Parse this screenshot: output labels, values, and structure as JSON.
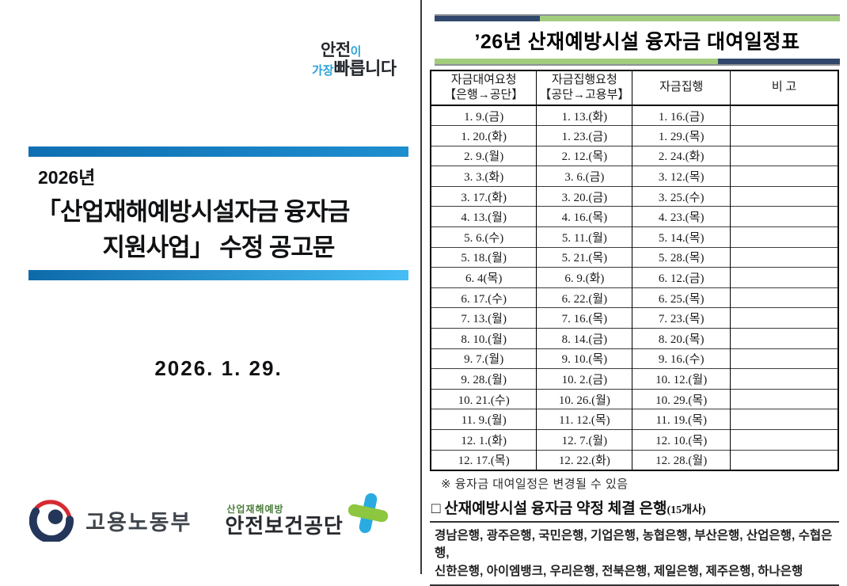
{
  "left_page": {
    "slogan": {
      "word_safety": "안전",
      "particle": "이",
      "word_most": "가장",
      "word_fastest": "빠릅니다"
    },
    "notice": {
      "year_line": "2026년",
      "title_line1": "「산업재해예방시설자금 융자금",
      "title_line2": "지원사업」 수정 공고문"
    },
    "date": "2026. 1. 29.",
    "moel": {
      "label": "고용노동부"
    },
    "kosha": {
      "sub_label": "산업재해예방",
      "label": "안전보건공단"
    }
  },
  "right_page": {
    "title": "’26년 산재예방시설 융자금 대여일정표",
    "table": {
      "headers": [
        {
          "line1": "자금대여요청",
          "line2": "【은행→공단】"
        },
        {
          "line1": "자금집행요청",
          "line2": "【공단→고용부】"
        },
        {
          "line1": "자금집행",
          "line2": ""
        },
        {
          "line1": "비 고",
          "line2": ""
        }
      ],
      "rows": [
        [
          "1. 9.(금)",
          "1. 13.(화)",
          "1. 16.(금)",
          ""
        ],
        [
          "1. 20.(화)",
          "1. 23.(금)",
          "1. 29.(목)",
          ""
        ],
        [
          "2. 9.(월)",
          "2. 12.(목)",
          "2. 24.(화)",
          ""
        ],
        [
          "3. 3.(화)",
          "3. 6.(금)",
          "3. 12.(목)",
          ""
        ],
        [
          "3. 17.(화)",
          "3. 20.(금)",
          "3. 25.(수)",
          ""
        ],
        [
          "4. 13.(월)",
          "4. 16.(목)",
          "4. 23.(목)",
          ""
        ],
        [
          "5. 6.(수)",
          "5. 11.(월)",
          "5. 14.(목)",
          ""
        ],
        [
          "5. 18.(월)",
          "5. 21.(목)",
          "5. 28.(목)",
          ""
        ],
        [
          "6. 4(목)",
          "6. 9.(화)",
          "6. 12.(금)",
          ""
        ],
        [
          "6. 17.(수)",
          "6. 22.(월)",
          "6. 25.(목)",
          ""
        ],
        [
          "7. 13.(월)",
          "7. 16.(목)",
          "7. 23.(목)",
          ""
        ],
        [
          "8. 10.(월)",
          "8. 14.(금)",
          "8. 20.(목)",
          ""
        ],
        [
          "9. 7.(월)",
          "9. 10.(목)",
          "9. 16.(수)",
          ""
        ],
        [
          "9. 28.(월)",
          "10. 2.(금)",
          "10. 12.(월)",
          ""
        ],
        [
          "10. 21.(수)",
          "10. 26.(월)",
          "10. 29.(목)",
          ""
        ],
        [
          "11. 9.(월)",
          "11. 12.(목)",
          "11. 19.(목)",
          ""
        ],
        [
          "12. 1.(화)",
          "12. 7.(월)",
          "12. 10.(목)",
          ""
        ],
        [
          "12. 17.(목)",
          "12. 22.(화)",
          "12. 28.(월)",
          ""
        ]
      ]
    },
    "footnote": "※ 융자금 대여일정은 변경될 수 있음",
    "banks": {
      "heading": "□ 산재예방시설 융자금 약정 체결 은행",
      "count": "(15개사)",
      "line1": "경남은행, 광주은행, 국민은행, 기업은행, 농협은행, 부산은행, 산업은행, 수협은행,",
      "line2": "신한은행, 아이엠뱅크, 우리은행, 전북은행, 제일은행, 제주은행, 하나은행"
    }
  },
  "colors": {
    "left_bar_blue": "#1478be",
    "left_bar_blue_light": "#45bdf5",
    "title_bar_navy": "#31486b",
    "title_bar_green": "#a3cd7e",
    "slogan_blue": "#2aa3db",
    "moel_navy": "#24375a",
    "moel_red": "#d62a33",
    "kosha_blue": "#29abe2",
    "kosha_green": "#8dc63f"
  }
}
